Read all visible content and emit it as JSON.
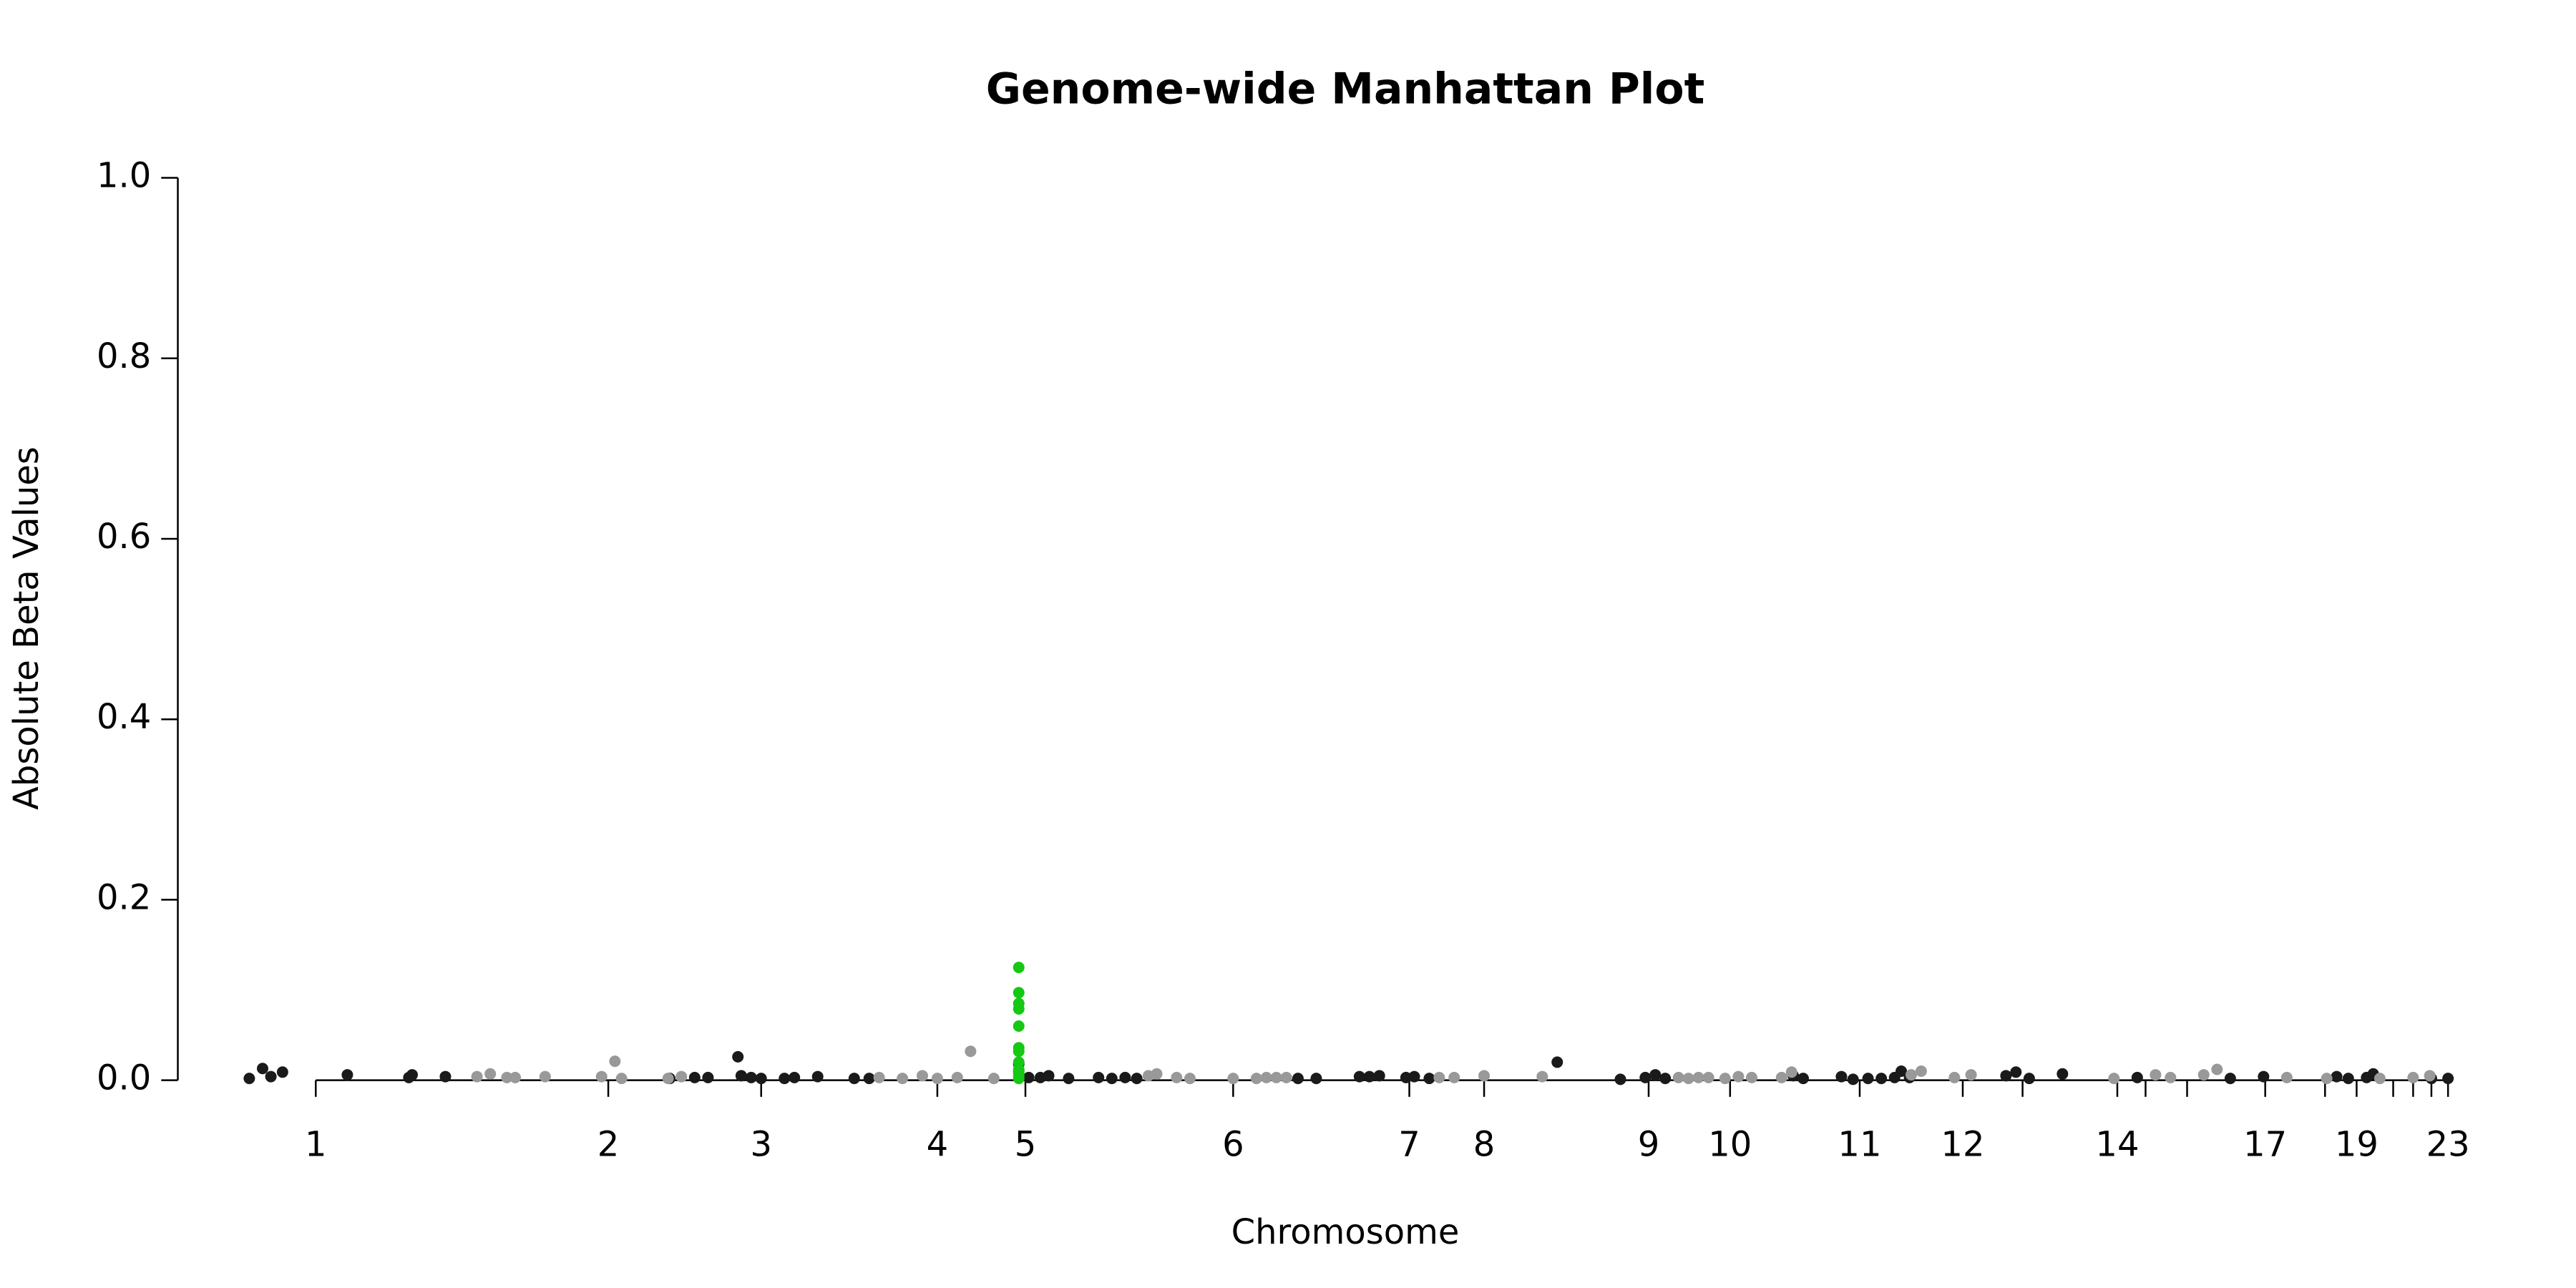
{
  "chart_data": {
    "type": "scatter",
    "title": "Genome-wide Manhattan Plot",
    "x_label": "Chromosome",
    "y_label": "Absolute Beta Values",
    "xlim": [
      0,
      1393
    ],
    "ylim": [
      -0.04,
      1.04
    ],
    "xticks": [
      {
        "value": 83,
        "label": "1"
      },
      {
        "value": 259,
        "label": "2"
      },
      {
        "value": 351,
        "label": "3"
      },
      {
        "value": 457,
        "label": "4"
      },
      {
        "value": 510,
        "label": "5"
      },
      {
        "value": 635,
        "label": "6"
      },
      {
        "value": 741,
        "label": "7"
      },
      {
        "value": 786,
        "label": "8"
      },
      {
        "value": 885,
        "label": "9"
      },
      {
        "value": 934,
        "label": "10"
      },
      {
        "value": 1012,
        "label": "11"
      },
      {
        "value": 1074,
        "label": "12"
      },
      {
        "value": 1110,
        "label": null
      },
      {
        "value": 1167,
        "label": "14"
      },
      {
        "value": 1184,
        "label": null
      },
      {
        "value": 1209,
        "label": null
      },
      {
        "value": 1256,
        "label": "17"
      },
      {
        "value": 1292,
        "label": null
      },
      {
        "value": 1311,
        "label": "19"
      },
      {
        "value": 1333,
        "label": null
      },
      {
        "value": 1345,
        "label": null
      },
      {
        "value": 1356,
        "label": null
      },
      {
        "value": 1366,
        "label": "23"
      }
    ],
    "yticks": [
      {
        "value": 0,
        "label": "0.0"
      },
      {
        "value": 0.2,
        "label": "0.2"
      },
      {
        "value": 0.4,
        "label": "0.4"
      },
      {
        "value": 0.6,
        "label": "0.6"
      },
      {
        "value": 0.8,
        "label": "0.8"
      },
      {
        "value": 1,
        "label": "1.0"
      }
    ],
    "series": [
      {
        "color": "#1a1a1a",
        "x": [
          43,
          51,
          56,
          63,
          102,
          139,
          141,
          161,
          296,
          311,
          319,
          337,
          339,
          345,
          351,
          365,
          371,
          385,
          407,
          416,
          506,
          506,
          512,
          519,
          524,
          536,
          554,
          562,
          570,
          577,
          674,
          685,
          711,
          717,
          723,
          739,
          744,
          753,
          830,
          868,
          883,
          889,
          895,
          972,
          978,
          1001,
          1008,
          1017,
          1025,
          1033,
          1037,
          1042,
          1100,
          1106,
          1114,
          1134,
          1179,
          1235,
          1255,
          1299,
          1306,
          1317,
          1321,
          1356,
          1366
        ],
        "values": [
          0.002,
          0.013,
          0.004,
          0.009,
          0.006,
          0.003,
          0.006,
          0.004,
          0.002,
          0.003,
          0.003,
          0.026,
          0.005,
          0.003,
          0.002,
          0.002,
          0.003,
          0.004,
          0.002,
          0.002,
          0.018,
          0.01,
          0.003,
          0.003,
          0.005,
          0.002,
          0.003,
          0.002,
          0.003,
          0.002,
          0.002,
          0.002,
          0.004,
          0.004,
          0.005,
          0.003,
          0.004,
          0.002,
          0.02,
          0.001,
          0.003,
          0.006,
          0.002,
          0.005,
          0.002,
          0.004,
          0.001,
          0.002,
          0.002,
          0.003,
          0.01,
          0.003,
          0.005,
          0.009,
          0.002,
          0.007,
          0.003,
          0.002,
          0.004,
          0.004,
          0.002,
          0.003,
          0.007,
          0.002,
          0.002
        ]
      },
      {
        "color": "#999999",
        "x": [
          188,
          180,
          198,
          203,
          221,
          255,
          263,
          267,
          295,
          303,
          422,
          436,
          448,
          457,
          469,
          477,
          491,
          584,
          589,
          601,
          609,
          635,
          649,
          655,
          661,
          667,
          759,
          768,
          786,
          821,
          903,
          909,
          915,
          921,
          931,
          939,
          947,
          965,
          971,
          1049,
          1043,
          1069,
          1079,
          1165,
          1190,
          1199,
          1219,
          1227,
          1269,
          1293,
          1325,
          1345,
          1355
        ],
        "values": [
          0.007,
          0.004,
          0.003,
          0.003,
          0.004,
          0.004,
          0.021,
          0.002,
          0.002,
          0.004,
          0.003,
          0.002,
          0.005,
          0.002,
          0.003,
          0.032,
          0.002,
          0.005,
          0.007,
          0.003,
          0.002,
          0.002,
          0.002,
          0.003,
          0.003,
          0.003,
          0.003,
          0.003,
          0.005,
          0.004,
          0.003,
          0.002,
          0.003,
          0.003,
          0.002,
          0.004,
          0.003,
          0.003,
          0.009,
          0.01,
          0.006,
          0.003,
          0.006,
          0.002,
          0.006,
          0.003,
          0.006,
          0.012,
          0.003,
          0.002,
          0.002,
          0.003,
          0.005
        ]
      },
      {
        "color": "#14c814",
        "x": [
          506,
          506,
          506,
          506,
          506,
          506,
          506,
          506,
          506,
          506,
          506,
          506
        ],
        "values": [
          0.125,
          0.097,
          0.085,
          0.079,
          0.06,
          0.036,
          0.032,
          0.02,
          0.012,
          0.008,
          0.005,
          0.002
        ]
      }
    ]
  }
}
